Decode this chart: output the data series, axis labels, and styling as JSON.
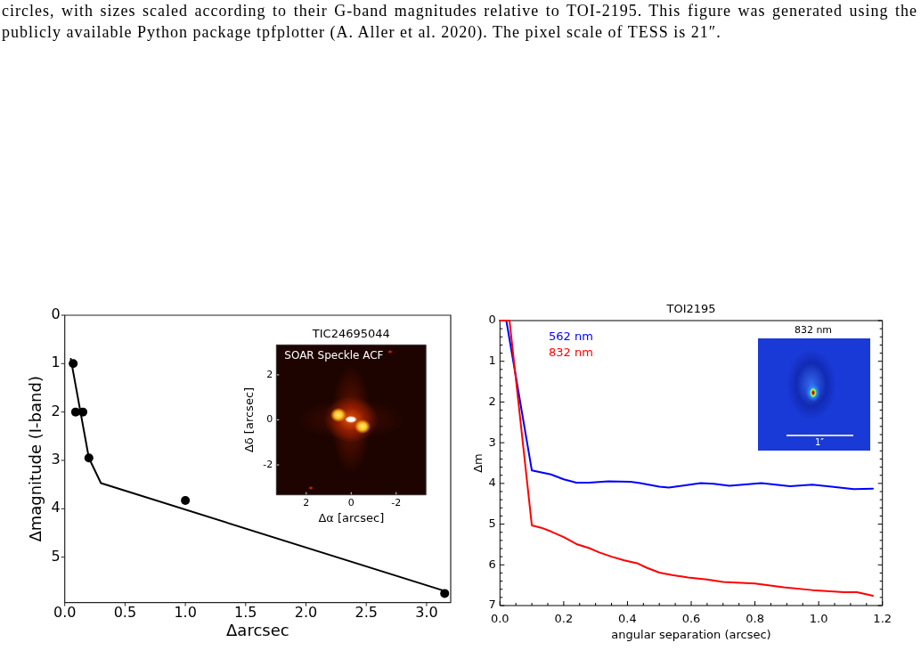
{
  "chart_data": [
    {
      "type": "scatter",
      "xlabel": "Δarcsec",
      "ylabel": "Δmagnitude (I-band)",
      "xlim": [
        0,
        3.2
      ],
      "xticks": [
        {
          "value": 0,
          "label": "0.0"
        },
        0.5,
        {
          "value": 1,
          "label": "1.0"
        },
        1.5,
        {
          "value": 2,
          "label": "2.0"
        },
        2.5,
        {
          "value": 3,
          "label": "3.0"
        }
      ],
      "ylim": [
        5.94,
        0
      ],
      "yticks": [
        0,
        1,
        2,
        3,
        4,
        5
      ],
      "series": [
        {
          "type": "scatter",
          "color": "#000000",
          "marker": "circle",
          "x": [
            0.07,
            0.09,
            0.15,
            0.2,
            1.0,
            3.15
          ],
          "values": [
            1.0,
            2.0,
            2.0,
            2.95,
            3.83,
            5.75
          ]
        },
        {
          "type": "line",
          "color": "#000000",
          "x": [
            0.05,
            0.2,
            0.3,
            3.15
          ],
          "values": [
            0.9,
            2.95,
            3.47,
            5.7
          ]
        }
      ],
      "annotations": [
        "circles, with sizes scaled according to their G-band magnitudes relative to TOI-2195. This figure was generated using the publicly available Python package tpfplotter (A. Aller et al. 2020). The pixel scale of TESS is 21″."
      ]
    },
    {
      "type": "scatter",
      "title": "TIC24695044",
      "xlabel": "Δα [arcsec]",
      "ylabel": "Δδ [arcsec]",
      "xlim": [
        3.33,
        -3.33
      ],
      "xticks": [
        2,
        0,
        -2
      ],
      "ylim": [
        -3.33,
        3.33
      ],
      "yticks": [
        -2,
        0,
        2
      ],
      "annotations": [
        "SOAR Speckle ACF"
      ]
    },
    {
      "type": "line",
      "title": "TOI2195",
      "xlabel": "angular separation (arcsec)",
      "ylabel": "Δm",
      "xlim": [
        0,
        1.2
      ],
      "xticks": [
        {
          "value": 0,
          "label": "0.0"
        },
        {
          "value": 0.05,
          "label": null
        },
        {
          "value": 0.1,
          "label": null
        },
        {
          "value": 0.15,
          "label": null
        },
        0.2,
        {
          "value": 0.25,
          "label": null
        },
        {
          "value": 0.3,
          "label": null
        },
        {
          "value": 0.35,
          "label": null
        },
        0.4,
        {
          "value": 0.45,
          "label": null
        },
        {
          "value": 0.5,
          "label": null
        },
        {
          "value": 0.55,
          "label": null
        },
        0.6,
        {
          "value": 0.65,
          "label": null
        },
        {
          "value": 0.7,
          "label": null
        },
        {
          "value": 0.75,
          "label": null
        },
        0.8,
        {
          "value": 0.85,
          "label": null
        },
        {
          "value": 0.9,
          "label": null
        },
        {
          "value": 0.95,
          "label": null
        },
        {
          "value": 1,
          "label": "1.0"
        },
        {
          "value": 1.05,
          "label": null
        },
        {
          "value": 1.1,
          "label": null
        },
        {
          "value": 1.15,
          "label": null
        },
        1.2
      ],
      "ylim": [
        7,
        0
      ],
      "yticks": [
        0,
        {
          "value": 0.2,
          "label": null
        },
        {
          "value": 0.4,
          "label": null
        },
        {
          "value": 0.6,
          "label": null
        },
        {
          "value": 0.8,
          "label": null
        },
        1,
        {
          "value": 1.2,
          "label": null
        },
        {
          "value": 1.4,
          "label": null
        },
        {
          "value": 1.6,
          "label": null
        },
        {
          "value": 1.8,
          "label": null
        },
        2,
        {
          "value": 2.2,
          "label": null
        },
        {
          "value": 2.4,
          "label": null
        },
        {
          "value": 2.6,
          "label": null
        },
        {
          "value": 2.8,
          "label": null
        },
        3,
        {
          "value": 3.2,
          "label": null
        },
        {
          "value": 3.4,
          "label": null
        },
        {
          "value": 3.6,
          "label": null
        },
        {
          "value": 3.8,
          "label": null
        },
        4,
        {
          "value": 4.2,
          "label": null
        },
        {
          "value": 4.4,
          "label": null
        },
        {
          "value": 4.6,
          "label": null
        },
        {
          "value": 4.8,
          "label": null
        },
        5,
        {
          "value": 5.2,
          "label": null
        },
        {
          "value": 5.4,
          "label": null
        },
        {
          "value": 5.6,
          "label": null
        },
        {
          "value": 5.8,
          "label": null
        },
        6,
        {
          "value": 6.2,
          "label": null
        },
        {
          "value": 6.4,
          "label": null
        },
        {
          "value": 6.6,
          "label": null
        },
        {
          "value": 6.8,
          "label": null
        },
        7
      ],
      "legend": "top left",
      "series": [
        {
          "name": "562 nm",
          "color": "#0000ff",
          "x": [
            0,
            0.02,
            0.1,
            0.16,
            0.2,
            0.24,
            0.28,
            0.34,
            0.41,
            0.44,
            0.5,
            0.53,
            0.56,
            0.63,
            0.67,
            0.72,
            0.82,
            0.91,
            0.98,
            1.04,
            1.11,
            1.17
          ],
          "values": [
            0,
            0,
            3.68,
            3.78,
            3.9,
            3.98,
            3.98,
            3.95,
            3.96,
            3.99,
            4.08,
            4.1,
            4.07,
            3.99,
            4.01,
            4.06,
            3.99,
            4.07,
            4.03,
            4.08,
            4.14,
            4.13
          ]
        },
        {
          "name": "832 nm",
          "color": "#ff0000",
          "x": [
            0,
            0.03,
            0.1,
            0.13,
            0.16,
            0.2,
            0.24,
            0.28,
            0.31,
            0.35,
            0.39,
            0.43,
            0.46,
            0.5,
            0.54,
            0.59,
            0.65,
            0.7,
            0.8,
            0.89,
            0.98,
            1.08,
            1.12,
            1.17
          ],
          "values": [
            0,
            0,
            5.03,
            5.09,
            5.18,
            5.32,
            5.49,
            5.59,
            5.69,
            5.8,
            5.89,
            5.96,
            6.07,
            6.19,
            6.25,
            6.31,
            6.36,
            6.42,
            6.46,
            6.55,
            6.62,
            6.67,
            6.67,
            6.76
          ]
        }
      ]
    },
    {
      "type": "other",
      "title": "832 nm",
      "annotations": [
        "1″"
      ]
    }
  ]
}
